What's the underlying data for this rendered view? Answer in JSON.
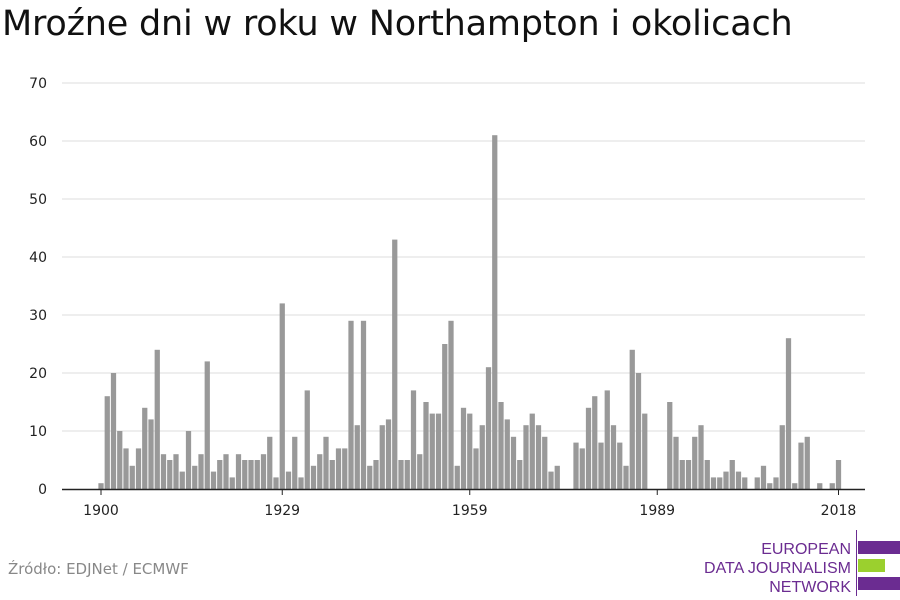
{
  "title": "Mroźne dni w roku w Northampton i okolicach",
  "source": "Źródło: EDJNet / ECMWF",
  "logo": {
    "line1": "EUROPEAN",
    "line2": "DATA JOURNALISM",
    "line3": "NETWORK",
    "colors": {
      "purple": "#6b2c91",
      "green": "#9bd02e"
    }
  },
  "colors": {
    "bar": "#999999",
    "grid": "#dddddd",
    "axis": "#222222"
  },
  "chart_data": {
    "type": "bar",
    "title": "Mroźne dni w roku w Northampton i okolicach",
    "xlabel": "",
    "ylabel": "",
    "ylim": [
      0,
      70
    ],
    "yticks": [
      0,
      10,
      20,
      30,
      40,
      50,
      60,
      70
    ],
    "xticks": [
      1900,
      1929,
      1959,
      1989,
      2018
    ],
    "grid": true,
    "x": [
      1900,
      1901,
      1902,
      1903,
      1904,
      1905,
      1906,
      1907,
      1908,
      1909,
      1910,
      1911,
      1912,
      1913,
      1914,
      1915,
      1916,
      1917,
      1918,
      1919,
      1920,
      1921,
      1922,
      1923,
      1924,
      1925,
      1926,
      1927,
      1928,
      1929,
      1930,
      1931,
      1932,
      1933,
      1934,
      1935,
      1936,
      1937,
      1938,
      1939,
      1940,
      1941,
      1942,
      1943,
      1944,
      1945,
      1946,
      1947,
      1948,
      1949,
      1950,
      1951,
      1952,
      1953,
      1954,
      1955,
      1956,
      1957,
      1958,
      1959,
      1960,
      1961,
      1962,
      1963,
      1964,
      1965,
      1966,
      1967,
      1968,
      1969,
      1970,
      1971,
      1972,
      1973,
      1974,
      1975,
      1976,
      1977,
      1978,
      1979,
      1980,
      1981,
      1982,
      1983,
      1984,
      1985,
      1986,
      1987,
      1988,
      1989,
      1990,
      1991,
      1992,
      1993,
      1994,
      1995,
      1996,
      1997,
      1998,
      1999,
      2000,
      2001,
      2002,
      2003,
      2004,
      2005,
      2006,
      2007,
      2008,
      2009,
      2010,
      2011,
      2012,
      2013,
      2014,
      2015,
      2016,
      2017,
      2018
    ],
    "values": [
      1,
      16,
      20,
      10,
      7,
      4,
      7,
      14,
      12,
      24,
      6,
      5,
      6,
      3,
      10,
      4,
      6,
      22,
      3,
      5,
      6,
      2,
      6,
      5,
      5,
      5,
      6,
      9,
      2,
      32,
      3,
      9,
      2,
      17,
      4,
      6,
      9,
      5,
      7,
      7,
      29,
      11,
      29,
      4,
      5,
      11,
      12,
      43,
      5,
      5,
      17,
      6,
      15,
      13,
      13,
      25,
      29,
      4,
      14,
      13,
      7,
      11,
      21,
      61,
      15,
      12,
      9,
      5,
      11,
      13,
      11,
      9,
      3,
      4,
      0,
      0,
      8,
      7,
      14,
      16,
      8,
      17,
      11,
      8,
      4,
      24,
      20,
      13,
      0,
      0,
      0,
      15,
      9,
      5,
      5,
      9,
      11,
      5,
      2,
      2,
      3,
      5,
      3,
      2,
      0,
      2,
      4,
      1,
      2,
      11,
      26,
      1,
      8,
      9,
      0,
      1,
      0,
      1,
      5
    ]
  }
}
